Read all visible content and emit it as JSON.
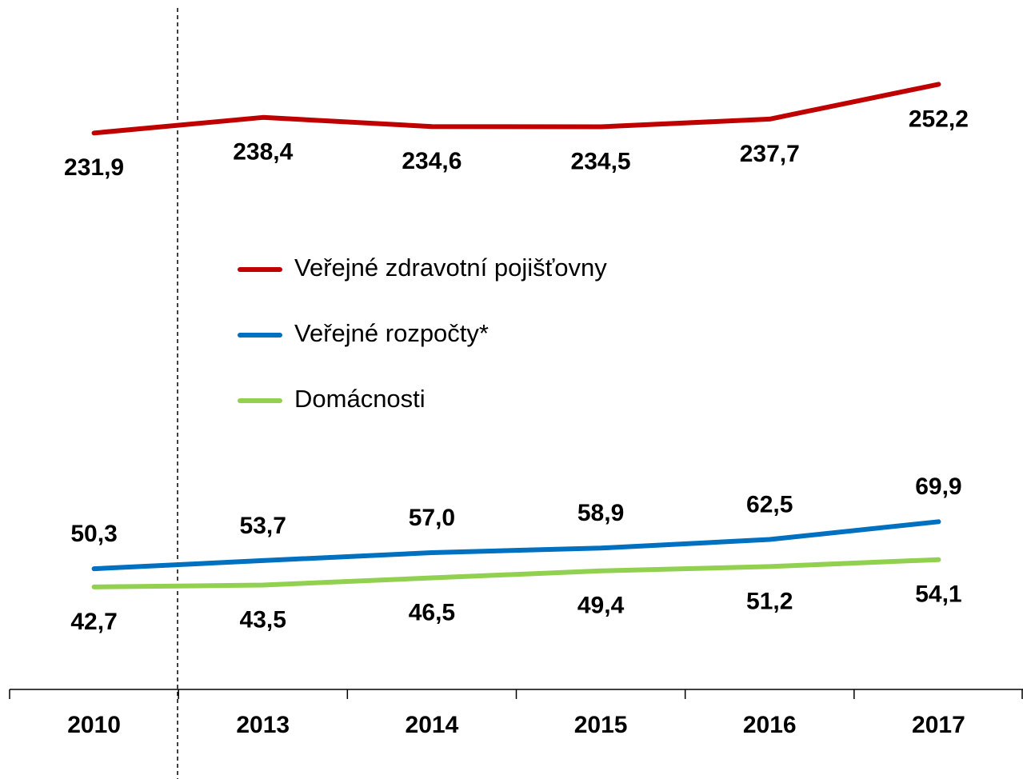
{
  "chart_data": {
    "type": "line",
    "categories": [
      "2010",
      "2013",
      "2014",
      "2015",
      "2016",
      "2017"
    ],
    "ylim": [
      0,
      280
    ],
    "series": [
      {
        "name": "Veřejné zdravotní pojišťovny",
        "color": "#c00000",
        "values": [
          231.9,
          238.4,
          234.6,
          234.5,
          237.7,
          252.2
        ],
        "value_labels": [
          "231,9",
          "238,4",
          "234,6",
          "234,5",
          "237,7",
          "252,2"
        ]
      },
      {
        "name": "Veřejné rozpočty*",
        "color": "#0070c0",
        "values": [
          50.3,
          53.7,
          57.0,
          58.9,
          62.5,
          69.9
        ],
        "value_labels": [
          "50,3",
          "53,7",
          "57,0",
          "58,9",
          "62,5",
          "69,9"
        ]
      },
      {
        "name": "Domácnosti",
        "color": "#92d050",
        "values": [
          42.7,
          43.5,
          46.5,
          49.4,
          51.2,
          54.1
        ],
        "value_labels": [
          "42,7",
          "43,5",
          "46,5",
          "49,4",
          "51,2",
          "54,1"
        ]
      }
    ]
  }
}
